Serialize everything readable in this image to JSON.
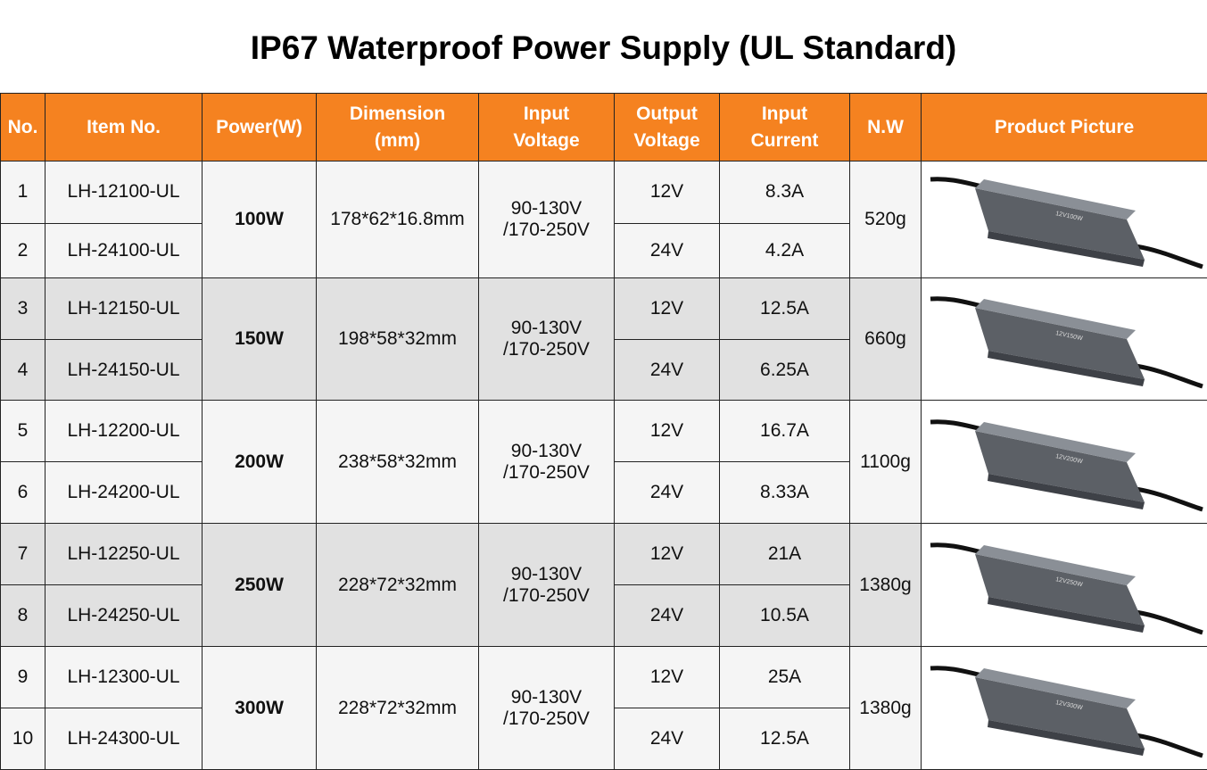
{
  "title": "IP67 Waterproof Power Supply (UL Standard)",
  "headers": [
    "No.",
    "Item No.",
    "Power(W)",
    "Dimension\n(mm)",
    "Input\nVoltage",
    "Output\nVoltage",
    "Input\nCurrent",
    "N.W",
    "Product Picture"
  ],
  "colors": {
    "header": "#f58220",
    "row_light": "#f5f5f5",
    "row_dark": "#e1e1e1"
  },
  "groups": [
    {
      "power": "100W",
      "dimension": "178*62*16.8mm",
      "input_voltage": "90-130V\n/170-250V",
      "nw": "520g",
      "label": "12V100W",
      "rows": [
        {
          "no": "1",
          "item": "LH-12100-UL",
          "out": "12V",
          "cur": "8.3A"
        },
        {
          "no": "2",
          "item": "LH-24100-UL",
          "out": "24V",
          "cur": "4.2A"
        }
      ]
    },
    {
      "power": "150W",
      "dimension": "198*58*32mm",
      "input_voltage": "90-130V\n/170-250V",
      "nw": "660g",
      "label": "12V150W",
      "rows": [
        {
          "no": "3",
          "item": "LH-12150-UL",
          "out": "12V",
          "cur": "12.5A"
        },
        {
          "no": "4",
          "item": "LH-24150-UL",
          "out": "24V",
          "cur": "6.25A"
        }
      ]
    },
    {
      "power": "200W",
      "dimension": "238*58*32mm",
      "input_voltage": "90-130V\n/170-250V",
      "nw": "1100g",
      "label": "12V200W",
      "rows": [
        {
          "no": "5",
          "item": "LH-12200-UL",
          "out": "12V",
          "cur": "16.7A"
        },
        {
          "no": "6",
          "item": "LH-24200-UL",
          "out": "24V",
          "cur": "8.33A"
        }
      ]
    },
    {
      "power": "250W",
      "dimension": "228*72*32mm",
      "input_voltage": "90-130V\n/170-250V",
      "nw": "1380g",
      "label": "12V250W",
      "rows": [
        {
          "no": "7",
          "item": "LH-12250-UL",
          "out": "12V",
          "cur": "21A"
        },
        {
          "no": "8",
          "item": "LH-24250-UL",
          "out": "24V",
          "cur": "10.5A"
        }
      ]
    },
    {
      "power": "300W",
      "dimension": "228*72*32mm",
      "input_voltage": "90-130V\n/170-250V",
      "nw": "1380g",
      "label": "12V300W",
      "rows": [
        {
          "no": "9",
          "item": "LH-12300-UL",
          "out": "12V",
          "cur": "25A"
        },
        {
          "no": "10",
          "item": "LH-24300-UL",
          "out": "24V",
          "cur": "12.5A"
        }
      ]
    }
  ]
}
